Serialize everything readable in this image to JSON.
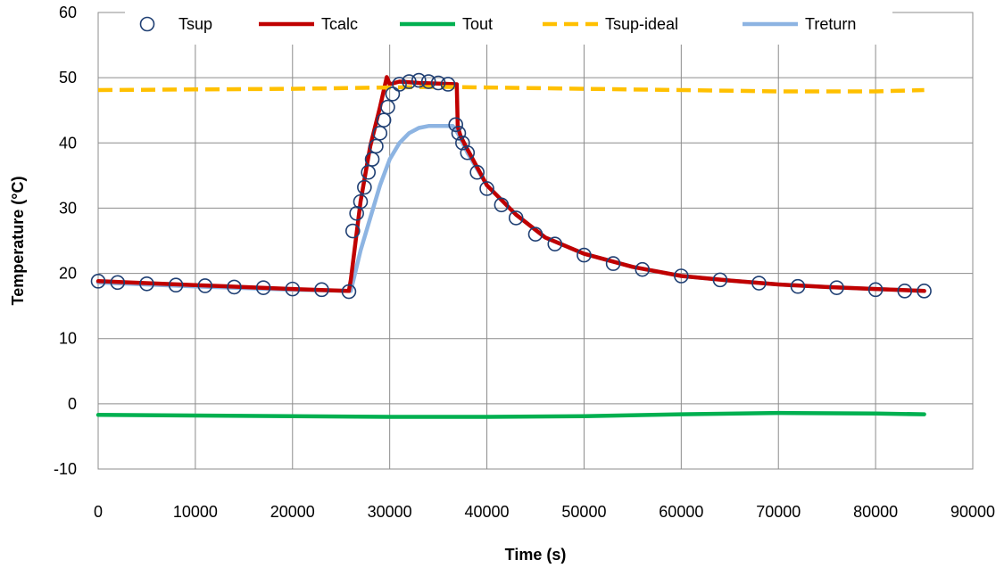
{
  "chart_data": {
    "type": "line",
    "xlabel": "Time (s)",
    "ylabel": "Temperature (°C)",
    "xlim": [
      0,
      90000
    ],
    "ylim": [
      -10,
      60
    ],
    "xticks": [
      0,
      10000,
      20000,
      30000,
      40000,
      50000,
      60000,
      70000,
      80000,
      90000
    ],
    "yticks": [
      -10,
      0,
      10,
      20,
      30,
      40,
      50,
      60
    ],
    "x_tick_labels": [
      "0",
      "10000",
      "20000",
      "30000",
      "40000",
      "50000",
      "60000",
      "70000",
      "80000",
      "90000"
    ],
    "y_tick_labels": [
      "-10",
      "0",
      "10",
      "20",
      "30",
      "40",
      "50",
      "60"
    ],
    "grid": true,
    "legend_position": "top",
    "series": [
      {
        "name": "Tsup",
        "style": "markers",
        "marker": "open-circle",
        "color": "#1F3F73",
        "x": [
          0,
          2000,
          5000,
          8000,
          11000,
          14000,
          17000,
          20000,
          23000,
          25800,
          26200,
          26600,
          27000,
          27400,
          27800,
          28200,
          28600,
          29000,
          29400,
          29800,
          30300,
          31000,
          32000,
          33000,
          34000,
          35000,
          36000,
          36800,
          37100,
          37500,
          38000,
          39000,
          40000,
          41500,
          43000,
          45000,
          47000,
          50000,
          53000,
          56000,
          60000,
          64000,
          68000,
          72000,
          76000,
          80000,
          83000,
          85000
        ],
        "y": [
          18.8,
          18.6,
          18.4,
          18.2,
          18.1,
          17.9,
          17.8,
          17.6,
          17.5,
          17.2,
          26.5,
          29.2,
          31.0,
          33.2,
          35.5,
          37.5,
          39.5,
          41.5,
          43.5,
          45.5,
          47.5,
          49.0,
          49.4,
          49.6,
          49.4,
          49.2,
          49.0,
          42.8,
          41.5,
          40.0,
          38.5,
          35.5,
          33.0,
          30.5,
          28.5,
          26.0,
          24.5,
          22.8,
          21.5,
          20.6,
          19.6,
          19.0,
          18.5,
          18.0,
          17.8,
          17.5,
          17.3,
          17.3
        ]
      },
      {
        "name": "Tcalc",
        "style": "line",
        "color": "#C00000",
        "x": [
          0,
          10000,
          20000,
          25800,
          26000,
          27000,
          28000,
          29000,
          29700,
          30000,
          31000,
          33000,
          35000,
          36900,
          37000,
          37300,
          38000,
          40000,
          43000,
          46000,
          50000,
          55000,
          60000,
          65000,
          70000,
          75000,
          80000,
          85000
        ],
        "y": [
          18.8,
          18.2,
          17.6,
          17.3,
          19.0,
          31.0,
          39.5,
          45.5,
          50.1,
          49.0,
          49.4,
          49.2,
          49.1,
          49.0,
          42.5,
          41.0,
          39.0,
          33.5,
          29.0,
          25.5,
          23.0,
          21.0,
          19.6,
          18.9,
          18.3,
          17.9,
          17.6,
          17.3
        ]
      },
      {
        "name": "Tout",
        "style": "line",
        "color": "#00B050",
        "x": [
          0,
          10000,
          20000,
          30000,
          40000,
          50000,
          60000,
          70000,
          80000,
          85000
        ],
        "y": [
          -1.7,
          -1.8,
          -1.9,
          -2.0,
          -2.0,
          -1.9,
          -1.6,
          -1.4,
          -1.5,
          -1.6
        ]
      },
      {
        "name": "Tsup-ideal",
        "style": "dashed-line",
        "color": "#FFC000",
        "x": [
          0,
          10000,
          20000,
          30000,
          35000,
          40000,
          50000,
          60000,
          70000,
          80000,
          85000
        ],
        "y": [
          48.1,
          48.2,
          48.3,
          48.5,
          48.6,
          48.5,
          48.3,
          48.1,
          47.9,
          47.9,
          48.1
        ]
      },
      {
        "name": "Treturn",
        "style": "line",
        "color": "#8DB4E2",
        "x": [
          0,
          10000,
          20000,
          26000,
          27000,
          28000,
          29000,
          30000,
          31000,
          32000,
          33000,
          34000,
          35000,
          36500,
          37000,
          38000,
          40000,
          43000,
          46000,
          50000,
          55000,
          60000,
          65000,
          70000,
          75000,
          80000,
          85000
        ],
        "y": [
          18.6,
          18.0,
          17.5,
          17.3,
          23.5,
          28.5,
          33.5,
          37.5,
          40.0,
          41.5,
          42.3,
          42.6,
          42.6,
          42.6,
          41.5,
          38.5,
          33.5,
          29.0,
          25.5,
          23.0,
          21.0,
          19.6,
          18.9,
          18.3,
          17.9,
          17.6,
          17.3
        ]
      }
    ]
  }
}
